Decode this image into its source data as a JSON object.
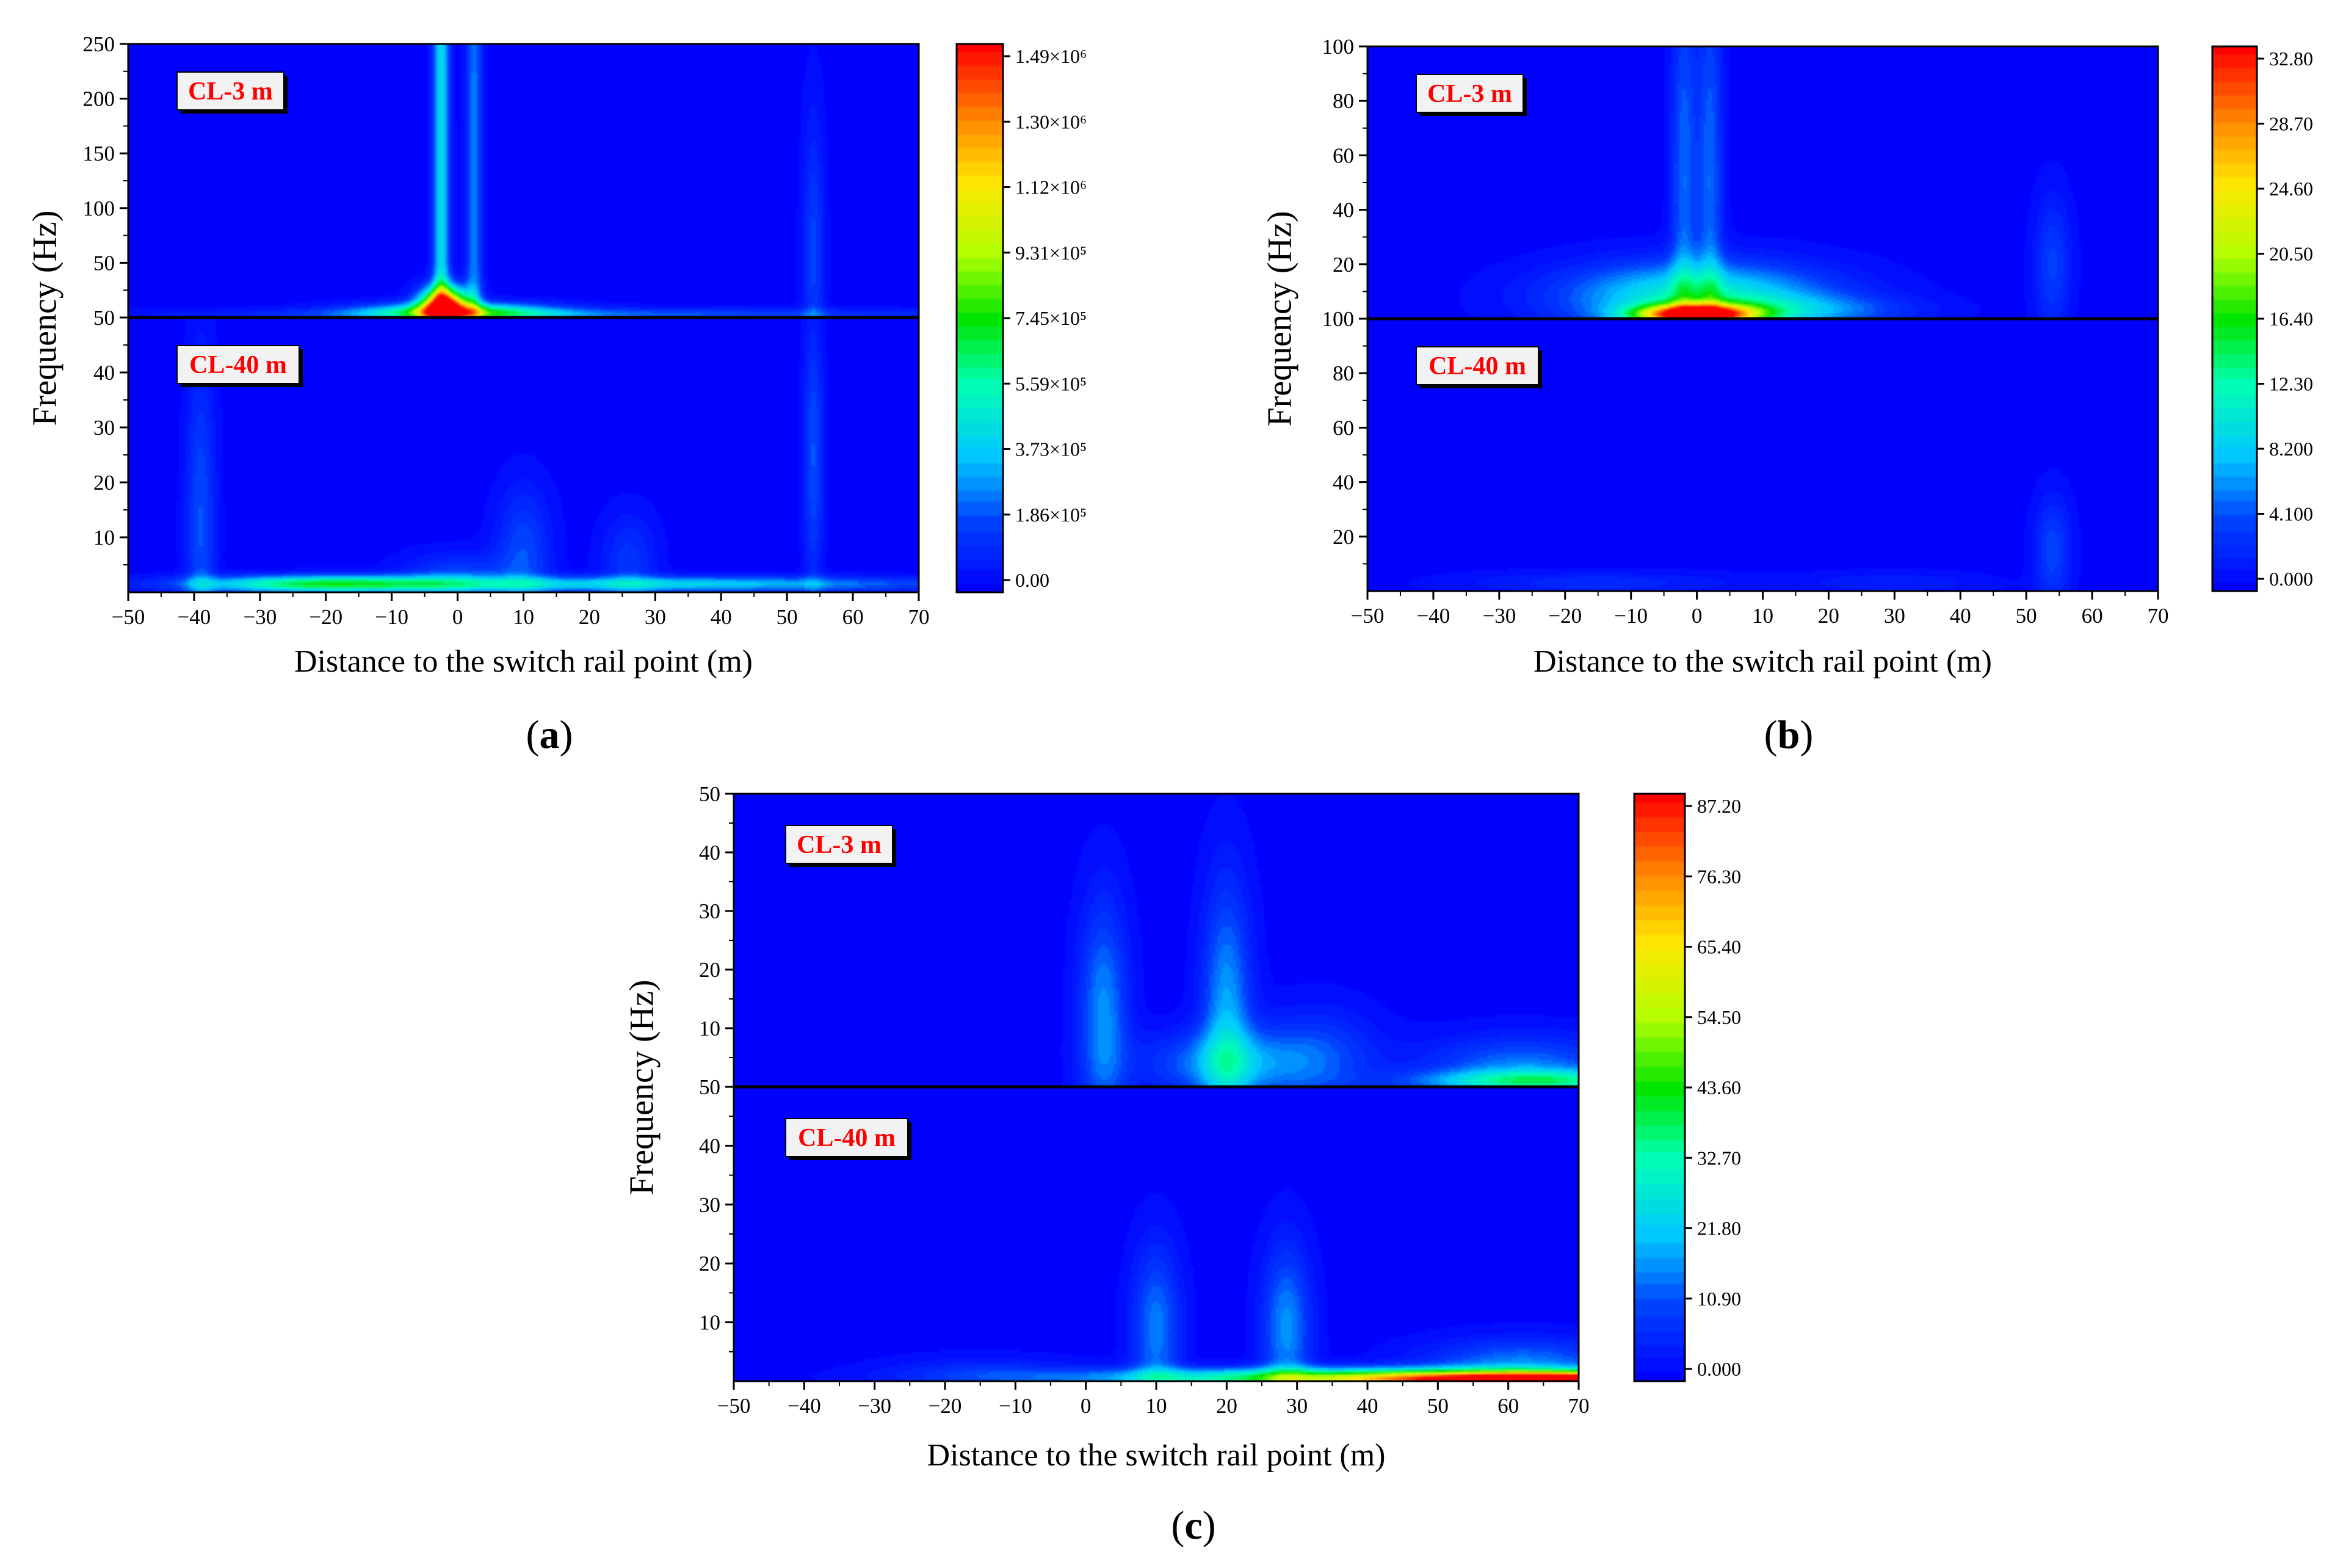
{
  "chart_data": [
    {
      "id": "a",
      "type": "heatmap",
      "panel_label": "a",
      "xlabel": "Distance to the switch rail point (m)",
      "ylabel": "Frequency (Hz)",
      "xlim": [
        -50,
        70
      ],
      "x_ticks": [
        "−50",
        "−40",
        "−30",
        "−20",
        "−10",
        "0",
        "10",
        "20",
        "30",
        "40",
        "50",
        "60",
        "70"
      ],
      "subplots": [
        {
          "label": "CL-3 m",
          "ylim": [
            0,
            250
          ],
          "y_ticks": [
            "50",
            "100",
            "150",
            "200",
            "250"
          ],
          "hotspots": [
            {
              "x": -2,
              "f": 10,
              "sx": 2.5,
              "sf": 12,
              "amp": 1.0
            },
            {
              "x": -2.5,
              "f": 120,
              "sx": 0.9,
              "sf": 400,
              "amp": 0.3
            },
            {
              "x": 2.5,
              "f": 120,
              "sx": 0.9,
              "sf": 400,
              "amp": 0.18
            },
            {
              "x": 0,
              "f": 5,
              "sx": 10,
              "sf": 6,
              "amp": 0.45
            },
            {
              "x": 20,
              "f": 3,
              "sx": 40,
              "sf": 4,
              "amp": 0.15
            },
            {
              "x": 54,
              "f": 60,
              "sx": 1.2,
              "sf": 90,
              "amp": 0.12
            }
          ]
        },
        {
          "label": "CL-40 m",
          "ylim": [
            0,
            50
          ],
          "y_ticks": [
            "10",
            "20",
            "30",
            "40",
            "50"
          ],
          "hotspots": [
            {
              "x": -20,
              "f": 1.5,
              "sx": 14,
              "sf": 1.1,
              "amp": 0.42
            },
            {
              "x": 30,
              "f": 1.5,
              "sx": 30,
              "sf": 1.0,
              "amp": 0.28
            },
            {
              "x": -39,
              "f": 12,
              "sx": 1.6,
              "sf": 22,
              "amp": 0.14
            },
            {
              "x": 10,
              "f": 8,
              "sx": 3,
              "sf": 8,
              "amp": 0.13
            },
            {
              "x": 26,
              "f": 6,
              "sx": 3,
              "sf": 6,
              "amp": 0.1
            },
            {
              "x": 54,
              "f": 25,
              "sx": 1.1,
              "sf": 18,
              "amp": 0.14
            },
            {
              "x": 0,
              "f": 3,
              "sx": 6,
              "sf": 3,
              "amp": 0.12
            }
          ]
        }
      ],
      "colorbar": {
        "ticks": [
          "0.00",
          "1.86×10⁵",
          "3.73×10⁵",
          "5.59×10⁵",
          "7.45×10⁵",
          "9.31×10⁵",
          "1.12×10⁶",
          "1.30×10⁶",
          "1.49×10⁶"
        ]
      }
    },
    {
      "id": "b",
      "type": "heatmap",
      "panel_label": "b",
      "xlabel": "Distance to the switch rail point (m)",
      "ylabel": "Frequency (Hz)",
      "xlim": [
        -50,
        70
      ],
      "x_ticks": [
        "−50",
        "−40",
        "−30",
        "−20",
        "−10",
        "0",
        "10",
        "20",
        "30",
        "40",
        "50",
        "60",
        "70"
      ],
      "subplots": [
        {
          "label": "CL-3 m",
          "ylim": [
            0,
            100
          ],
          "y_ticks": [
            "20",
            "40",
            "60",
            "80",
            "100"
          ],
          "hotspots": [
            {
              "x": 0,
              "f": 1.5,
              "sx": 6,
              "sf": 2.5,
              "amp": 1.0
            },
            {
              "x": 0,
              "f": 8,
              "sx": 14,
              "sf": 9,
              "amp": 0.35
            },
            {
              "x": -2,
              "f": 50,
              "sx": 1.4,
              "sf": 60,
              "amp": 0.16
            },
            {
              "x": 2,
              "f": 50,
              "sx": 1.4,
              "sf": 60,
              "amp": 0.16
            },
            {
              "x": 54,
              "f": 20,
              "sx": 2,
              "sf": 18,
              "amp": 0.12
            },
            {
              "x": 15,
              "f": 3,
              "sx": 12,
              "sf": 4,
              "amp": 0.15
            }
          ]
        },
        {
          "label": "CL-40 m",
          "ylim": [
            0,
            100
          ],
          "y_ticks": [
            "20",
            "40",
            "60",
            "80",
            "100"
          ],
          "hotspots": [
            {
              "x": 54,
              "f": 15,
              "sx": 2,
              "sf": 14,
              "amp": 0.13
            },
            {
              "x": -15,
              "f": 3,
              "sx": 15,
              "sf": 3,
              "amp": 0.08
            },
            {
              "x": 30,
              "f": 3,
              "sx": 10,
              "sf": 3,
              "amp": 0.06
            }
          ]
        }
      ],
      "colorbar": {
        "ticks": [
          "0.000",
          "4.100",
          "8.200",
          "12.30",
          "16.40",
          "20.50",
          "24.60",
          "28.70",
          "32.80"
        ]
      }
    },
    {
      "id": "c",
      "type": "heatmap",
      "panel_label": "c",
      "xlabel": "Distance to the switch rail point (m)",
      "ylabel": "Frequency (Hz)",
      "xlim": [
        -50,
        70
      ],
      "x_ticks": [
        "−50",
        "−40",
        "−30",
        "−20",
        "−10",
        "0",
        "10",
        "20",
        "30",
        "40",
        "50",
        "60",
        "70"
      ],
      "subplots": [
        {
          "label": "CL-3 m",
          "ylim": [
            0,
            50
          ],
          "y_ticks": [
            "10",
            "20",
            "30",
            "40",
            "50"
          ],
          "hotspots": [
            {
              "x": 2.5,
              "f": 12,
              "sx": 2.5,
              "sf": 14,
              "amp": 0.2
            },
            {
              "x": 20,
              "f": 12,
              "sx": 2.5,
              "sf": 16,
              "amp": 0.22
            },
            {
              "x": 20,
              "f": 4,
              "sx": 8,
              "sf": 4,
              "amp": 0.2
            },
            {
              "x": 33,
              "f": 5,
              "sx": 6,
              "sf": 6,
              "amp": 0.12
            },
            {
              "x": 62,
              "f": 3,
              "sx": 10,
              "sf": 4,
              "amp": 0.18
            },
            {
              "x": 65,
              "f": 1,
              "sx": 12,
              "sf": 1.3,
              "amp": 0.3
            }
          ]
        },
        {
          "label": "CL-40 m",
          "ylim": [
            0,
            50
          ],
          "y_ticks": [
            "10",
            "20",
            "30",
            "40",
            "50"
          ],
          "hotspots": [
            {
              "x": 72,
              "f": 0.2,
              "sx": 22,
              "sf": 0.9,
              "amp": 1.0
            },
            {
              "x": 40,
              "f": 0.6,
              "sx": 28,
              "sf": 1.2,
              "amp": 0.45
            },
            {
              "x": 10,
              "f": 9,
              "sx": 2.5,
              "sf": 10,
              "amp": 0.18
            },
            {
              "x": 28.5,
              "f": 9,
              "sx": 2.5,
              "sf": 10,
              "amp": 0.2
            },
            {
              "x": 62,
              "f": 3,
              "sx": 10,
              "sf": 3,
              "amp": 0.18
            },
            {
              "x": -15,
              "f": 1.5,
              "sx": 10,
              "sf": 2,
              "amp": 0.08
            }
          ]
        }
      ],
      "colorbar": {
        "ticks": [
          "0.000",
          "10.90",
          "21.80",
          "32.70",
          "43.60",
          "54.50",
          "65.40",
          "76.30",
          "87.20"
        ]
      }
    }
  ]
}
